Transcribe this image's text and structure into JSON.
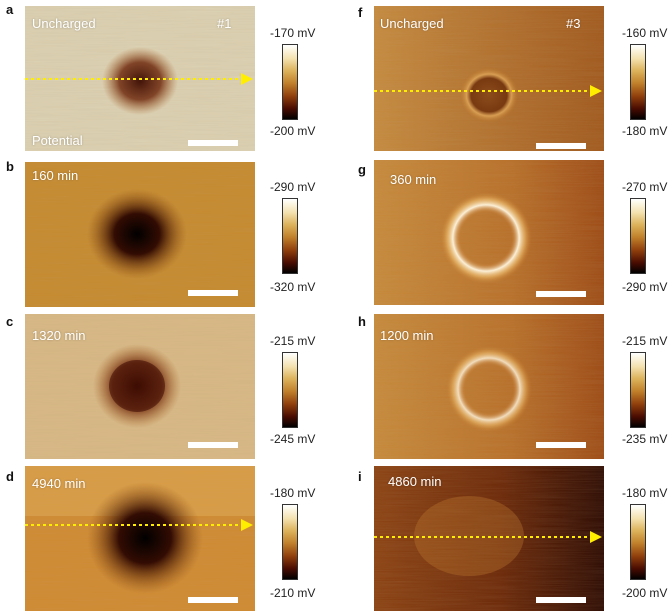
{
  "colors": {
    "arrow": "#ffee00",
    "scale_bar": "#ffffff",
    "colormap": [
      "#ffffff",
      "#f4e2b0",
      "#dcb25a",
      "#c07f2a",
      "#8d3d0b",
      "#4a0c02",
      "#000000"
    ]
  },
  "panels": [
    {
      "letter": "a",
      "label": "Uncharged",
      "sample": "#1",
      "extra": "Potential",
      "cb_top": "-170 mV",
      "cb_bottom": "-200 mV"
    },
    {
      "letter": "b",
      "label": "160 min",
      "cb_top": "-290 mV",
      "cb_bottom": "-320 mV"
    },
    {
      "letter": "c",
      "label": "1320 min",
      "cb_top": "-215 mV",
      "cb_bottom": "-245 mV"
    },
    {
      "letter": "d",
      "label": "4940 min",
      "cb_top": "-180 mV",
      "cb_bottom": "-210 mV"
    },
    {
      "letter": "f",
      "label": "Uncharged",
      "sample": "#3",
      "cb_top": "-160 mV",
      "cb_bottom": "-180 mV"
    },
    {
      "letter": "g",
      "label": "360 min",
      "cb_top": "-270 mV",
      "cb_bottom": "-290 mV"
    },
    {
      "letter": "h",
      "label": "1200 min",
      "cb_top": "-215 mV",
      "cb_bottom": "-235 mV"
    },
    {
      "letter": "i",
      "label": "4860 min",
      "cb_top": "-180 mV",
      "cb_bottom": "-200 mV"
    }
  ]
}
